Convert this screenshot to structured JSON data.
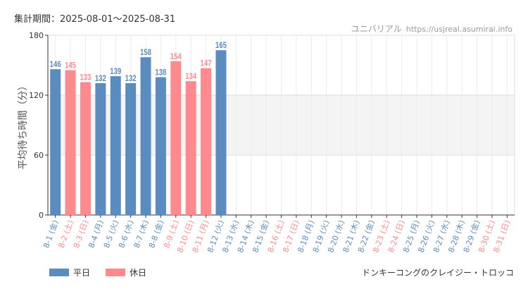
{
  "period_label": "集計期間：2025-08-01〜2025-08-31",
  "source": {
    "name": "ユニバリアル",
    "url": "https://usjreal.asumirai.info"
  },
  "attraction": "ドンキーコングのクレイジー・トロッコ",
  "legend": [
    {
      "label": "平日",
      "color": "#5b8cc0"
    },
    {
      "label": "休日",
      "color": "#ff8a8e"
    }
  ],
  "chart_data": {
    "type": "bar",
    "ylabel": "平均待ち時間（分）",
    "ylim": [
      0,
      180
    ],
    "yticks": [
      0,
      60,
      120,
      180
    ],
    "categories": [
      "8-1 (金)",
      "8-2 (土)",
      "8-3 (日)",
      "8-4 (月)",
      "8-5 (火)",
      "8-6 (水)",
      "8-7 (木)",
      "8-8 (金)",
      "8-9 (土)",
      "8-10 (日)",
      "8-11 (月)",
      "8-12 (火)",
      "8-13 (水)",
      "8-14 (木)",
      "8-15 (金)",
      "8-16 (土)",
      "8-17 (日)",
      "8-18 (月)",
      "8-19 (火)",
      "8-20 (水)",
      "8-21 (木)",
      "8-22 (金)",
      "8-23 (土)",
      "8-24 (日)",
      "8-25 (月)",
      "8-26 (火)",
      "8-27 (水)",
      "8-28 (木)",
      "8-29 (金)",
      "8-30 (土)",
      "8-31 (日)"
    ],
    "values": [
      146,
      145,
      133,
      132,
      139,
      132,
      158,
      138,
      154,
      134,
      147,
      165,
      null,
      null,
      null,
      null,
      null,
      null,
      null,
      null,
      null,
      null,
      null,
      null,
      null,
      null,
      null,
      null,
      null,
      null,
      null
    ],
    "day_type": [
      "weekday",
      "holiday",
      "holiday",
      "weekday",
      "weekday",
      "weekday",
      "weekday",
      "weekday",
      "holiday",
      "holiday",
      "holiday",
      "weekday",
      "weekday",
      "weekday",
      "weekday",
      "holiday",
      "holiday",
      "weekday",
      "weekday",
      "weekday",
      "weekday",
      "weekday",
      "holiday",
      "holiday",
      "weekday",
      "weekday",
      "weekday",
      "weekday",
      "weekday",
      "holiday",
      "holiday"
    ],
    "colors": {
      "weekday": "#5b8cc0",
      "holiday": "#ff8a8e"
    }
  }
}
